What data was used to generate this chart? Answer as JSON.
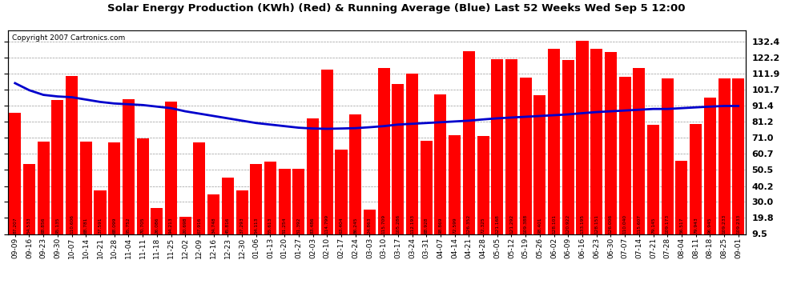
{
  "title": "Solar Energy Production (KWh) (Red) & Running Average (Blue) Last 52 Weeks Wed Sep 5 12:00",
  "copyright": "Copyright 2007 Cartronics.com",
  "bar_color": "#FF0000",
  "line_color": "#0000CC",
  "background_color": "#FFFFFF",
  "plot_bg_color": "#FFFFFF",
  "ylabel_right": [
    "132.4",
    "122.2",
    "111.9",
    "101.7",
    "91.4",
    "81.2",
    "71.0",
    "60.7",
    "50.5",
    "40.2",
    "30.0",
    "19.8",
    "9.5"
  ],
  "yticks": [
    132.4,
    122.2,
    111.9,
    101.7,
    91.4,
    81.2,
    71.0,
    60.7,
    50.5,
    40.2,
    30.0,
    19.8,
    9.5
  ],
  "categories": [
    "09-09",
    "09-16",
    "09-23",
    "09-30",
    "10-07",
    "10-14",
    "10-21",
    "10-28",
    "11-04",
    "11-11",
    "11-18",
    "11-25",
    "12-02",
    "12-09",
    "12-16",
    "12-23",
    "12-30",
    "01-06",
    "01-13",
    "01-20",
    "01-27",
    "02-03",
    "02-10",
    "02-17",
    "02-24",
    "03-03",
    "03-10",
    "03-17",
    "03-24",
    "03-31",
    "04-07",
    "04-14",
    "04-21",
    "04-28",
    "05-05",
    "05-12",
    "05-19",
    "05-26",
    "06-02",
    "06-09",
    "06-16",
    "06-23",
    "06-30",
    "07-07",
    "07-14",
    "07-21",
    "07-28",
    "08-04",
    "08-11",
    "08-18",
    "08-25",
    "09-01"
  ],
  "values": [
    87.207,
    54.533,
    68.856,
    95.135,
    110.606,
    68.781,
    37.591,
    68.099,
    95.752,
    70.705,
    26.086,
    94.213,
    20.698,
    67.916,
    34.748,
    45.816,
    37.293,
    54.113,
    55.613,
    51.254,
    51.392,
    83.486,
    114.799,
    63.404,
    86.245,
    24.863,
    115.709,
    105.286,
    112.193,
    68.928,
    98.869,
    72.599,
    126.352,
    72.325,
    121.168,
    121.292,
    109.388,
    98.401,
    128.101,
    120.922,
    133.195,
    128.151,
    126.006,
    110.04,
    115.607,
    79.145,
    109.173,
    56.517,
    79.943,
    96.945,
    109.233,
    109.233
  ],
  "running_avg": [
    106.0,
    101.5,
    98.5,
    97.5,
    97.0,
    95.5,
    94.0,
    93.0,
    92.5,
    92.0,
    91.0,
    90.0,
    88.0,
    86.5,
    85.0,
    83.5,
    82.0,
    80.5,
    79.5,
    78.5,
    77.5,
    77.0,
    76.8,
    77.0,
    77.2,
    77.8,
    78.5,
    79.5,
    80.0,
    80.5,
    81.0,
    81.5,
    82.0,
    82.8,
    83.5,
    84.0,
    84.5,
    85.0,
    85.5,
    86.0,
    86.8,
    87.5,
    88.0,
    88.5,
    89.0,
    89.5,
    89.5,
    90.0,
    90.5,
    91.0,
    91.4,
    91.4
  ],
  "ymin": 9.5,
  "ymax": 140.0
}
